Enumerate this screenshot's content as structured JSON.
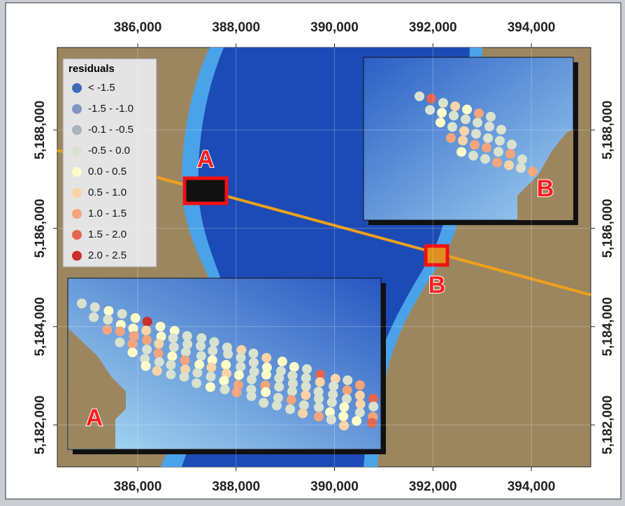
{
  "map": {
    "xlim": [
      384367,
      395207
    ],
    "ylim": [
      5181147,
      5189678
    ],
    "xticks": [
      {
        "value": 386000,
        "label": "386,000"
      },
      {
        "value": 388000,
        "label": "388,000"
      },
      {
        "value": 390000,
        "label": "390,000"
      },
      {
        "value": 392000,
        "label": "392,000"
      },
      {
        "value": 394000,
        "label": "394,000"
      }
    ],
    "yticks": [
      {
        "value": 5182000,
        "label": "5,182,000"
      },
      {
        "value": 5184000,
        "label": "5,184,000"
      },
      {
        "value": 5186000,
        "label": "5,186,000"
      },
      {
        "value": 5188000,
        "label": "5,188,000"
      }
    ],
    "legend": {
      "title": "residuals",
      "entries": [
        {
          "label": "< -1.5",
          "color": "#3d6cb5"
        },
        {
          "label": "-1.5 - -1.0",
          "color": "#7f96c0"
        },
        {
          "label": "-0.1 - -0.5",
          "color": "#a9b4bc"
        },
        {
          "label": "-0.5 - 0.0",
          "color": "#d9e2cf"
        },
        {
          "label": "0.0 - 0.5",
          "color": "#fdfcc8"
        },
        {
          "label": "0.5 - 1.0",
          "color": "#f9d3a6"
        },
        {
          "label": "1.0 - 1.5",
          "color": "#f3a47c"
        },
        {
          "label": "1.5 - 2.0",
          "color": "#e4664e"
        },
        {
          "label": "2.0 - 2.5",
          "color": "#c9302a"
        }
      ]
    },
    "sites": [
      {
        "label": "A"
      },
      {
        "label": "B"
      }
    ]
  }
}
